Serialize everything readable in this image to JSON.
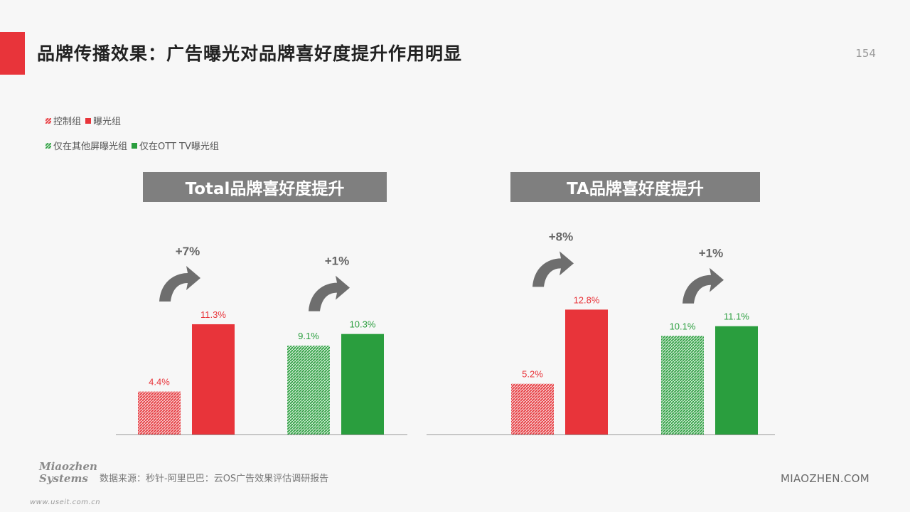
{
  "page": {
    "title": "品牌传播效果：广告曝光对品牌喜好度提升作用明显",
    "page_number": "154",
    "source": "数据来源：秒针-阿里巴巴：云OS广告效果评估调研报告",
    "logo_text": "Miaozhen Systems",
    "watermark": "www.useit.com.cn",
    "site": "MIAOZHEN.COM"
  },
  "legend": {
    "control": "控制组",
    "exposed": "曝光组",
    "other_screen": "仅在其他屏曝光组",
    "ott_only": "仅在OTT TV曝光组"
  },
  "colors": {
    "red": "#e8343a",
    "green": "#2a9e3e",
    "banner": "#7f7f7f",
    "arrow": "#6e6e6e"
  },
  "chart_data": [
    {
      "type": "bar",
      "title": "Total品牌喜好度提升",
      "groups": [
        {
          "lift": "+7%",
          "bars": [
            {
              "series": "控制组",
              "value": 4.4,
              "label": "4.4%",
              "color": "red",
              "pattern": true
            },
            {
              "series": "曝光组",
              "value": 11.3,
              "label": "11.3%",
              "color": "red",
              "pattern": false
            }
          ]
        },
        {
          "lift": "+1%",
          "bars": [
            {
              "series": "仅在其他屏曝光组",
              "value": 9.1,
              "label": "9.1%",
              "color": "green",
              "pattern": true
            },
            {
              "series": "仅在OTT TV曝光组",
              "value": 10.3,
              "label": "10.3%",
              "color": "green",
              "pattern": false
            }
          ]
        }
      ]
    },
    {
      "type": "bar",
      "title": "TA品牌喜好度提升",
      "groups": [
        {
          "lift": "+8%",
          "bars": [
            {
              "series": "控制组",
              "value": 5.2,
              "label": "5.2%",
              "color": "red",
              "pattern": true
            },
            {
              "series": "曝光组",
              "value": 12.8,
              "label": "12.8%",
              "color": "red",
              "pattern": false
            }
          ]
        },
        {
          "lift": "+1%",
          "bars": [
            {
              "series": "仅在其他屏曝光组",
              "value": 10.1,
              "label": "10.1%",
              "color": "green",
              "pattern": true
            },
            {
              "series": "仅在OTT TV曝光组",
              "value": 11.1,
              "label": "11.1%",
              "color": "green",
              "pattern": false
            }
          ]
        }
      ]
    }
  ]
}
